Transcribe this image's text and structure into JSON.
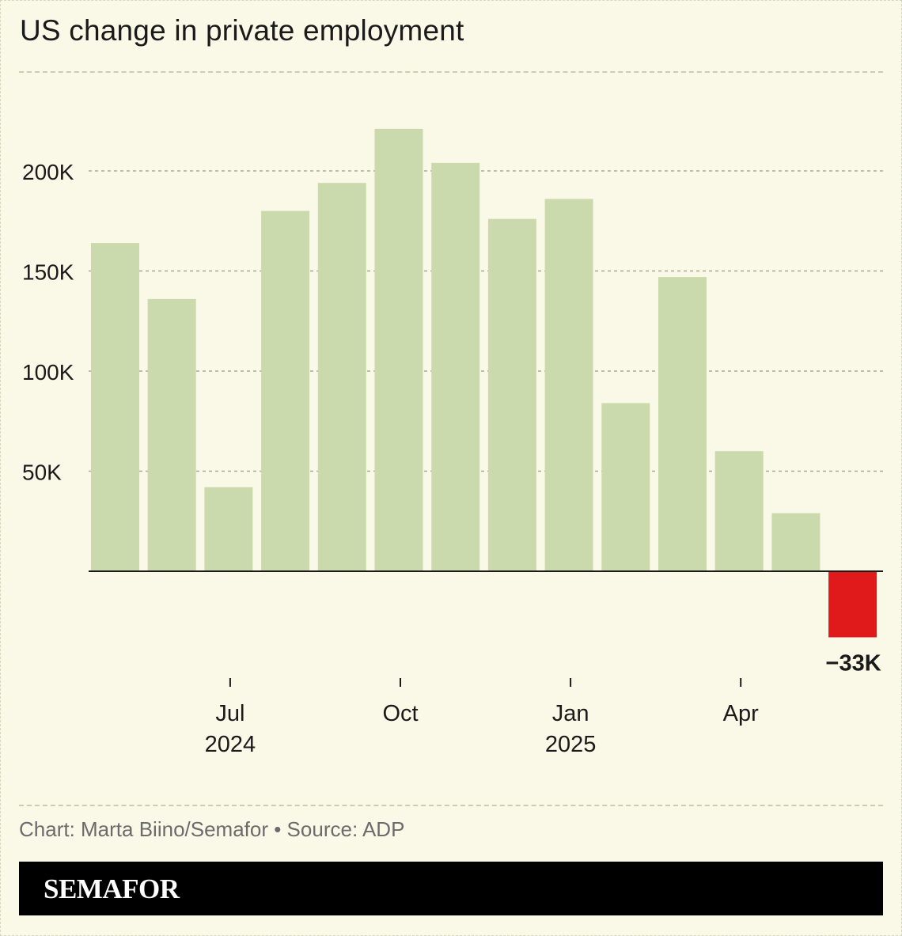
{
  "header": {
    "title": "US change in private employment"
  },
  "footer": {
    "credit": "Chart: Marta Biino/Semafor • Source: ADP",
    "brand": "SEMAFOR"
  },
  "colors": {
    "background": "#faf8e6",
    "bar": "#cbdaad",
    "negative_bar": "#e0191b",
    "brand_bar": "#000000"
  },
  "chart_data": {
    "type": "bar",
    "title": "US change in private employment",
    "xlabel": "",
    "ylabel": "",
    "categories": [
      "May 2024",
      "Jun 2024",
      "Jul 2024",
      "Aug 2024",
      "Sep 2024",
      "Oct 2024",
      "Nov 2024",
      "Dec 2024",
      "Jan 2025",
      "Feb 2025",
      "Mar 2025",
      "Apr 2025",
      "May 2025",
      "Jun 2025"
    ],
    "values": [
      164000,
      136000,
      42000,
      180000,
      194000,
      221000,
      204000,
      176000,
      186000,
      84000,
      147000,
      60000,
      29000,
      -33000
    ],
    "ylim": [
      -33000,
      230000
    ],
    "yticks": [
      {
        "value": 50000,
        "label": "50K"
      },
      {
        "value": 100000,
        "label": "100K"
      },
      {
        "value": 150000,
        "label": "150K"
      },
      {
        "value": 200000,
        "label": "200K"
      }
    ],
    "xticks": [
      {
        "category": "Jul 2024",
        "label": "Jul",
        "sublabel": "2024"
      },
      {
        "category": "Oct 2024",
        "label": "Oct",
        "sublabel": ""
      },
      {
        "category": "Jan 2025",
        "label": "Jan",
        "sublabel": "2025"
      },
      {
        "category": "Apr 2025",
        "label": "Apr",
        "sublabel": ""
      }
    ],
    "annotations": [
      {
        "category": "Jun 2025",
        "text": "−33K"
      }
    ],
    "grid": true,
    "legend": "none"
  }
}
